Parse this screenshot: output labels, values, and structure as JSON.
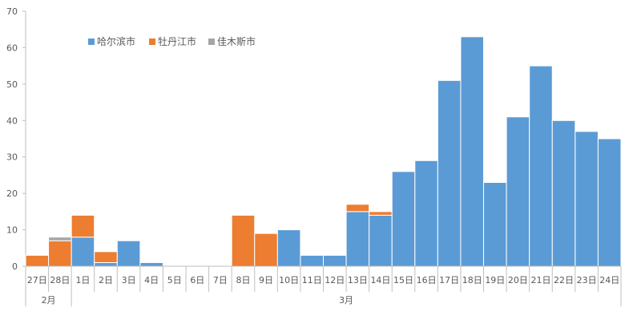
{
  "chart_data": {
    "type": "bar",
    "stacked": true,
    "categories": [
      "27日",
      "28日",
      "1日",
      "2日",
      "3日",
      "4日",
      "5日",
      "6日",
      "7日",
      "8日",
      "9日",
      "10日",
      "11日",
      "12日",
      "13日",
      "14日",
      "15日",
      "16日",
      "17日",
      "18日",
      "19日",
      "20日",
      "21日",
      "22日",
      "23日",
      "24日"
    ],
    "groups": [
      {
        "label": "2月",
        "count": 2
      },
      {
        "label": "3月",
        "count": 24
      }
    ],
    "series": [
      {
        "name": "哈尔滨市",
        "color": "#5B9BD5",
        "values": [
          0,
          0,
          8,
          1,
          7,
          1,
          0,
          0,
          0,
          0,
          0,
          10,
          3,
          3,
          15,
          14,
          26,
          29,
          51,
          63,
          23,
          41,
          55,
          40,
          37,
          35
        ]
      },
      {
        "name": "牡丹江市",
        "color": "#ED7D31",
        "values": [
          3,
          7,
          6,
          3,
          0,
          0,
          0,
          0,
          0,
          14,
          9,
          0,
          0,
          0,
          2,
          1,
          0,
          0,
          0,
          0,
          0,
          0,
          0,
          0,
          0,
          0
        ]
      },
      {
        "name": "佳木斯市",
        "color": "#A5A5A5",
        "values": [
          0,
          1,
          0,
          0,
          0,
          0,
          0,
          0,
          0,
          0,
          0,
          0,
          0,
          0,
          0,
          0,
          0,
          0,
          0,
          0,
          0,
          0,
          0,
          0,
          0,
          0
        ]
      }
    ],
    "ylim": [
      0,
      70
    ],
    "yticks": [
      0,
      10,
      20,
      30,
      40,
      50,
      60,
      70
    ],
    "grid": false,
    "legend_position": "top-left"
  }
}
